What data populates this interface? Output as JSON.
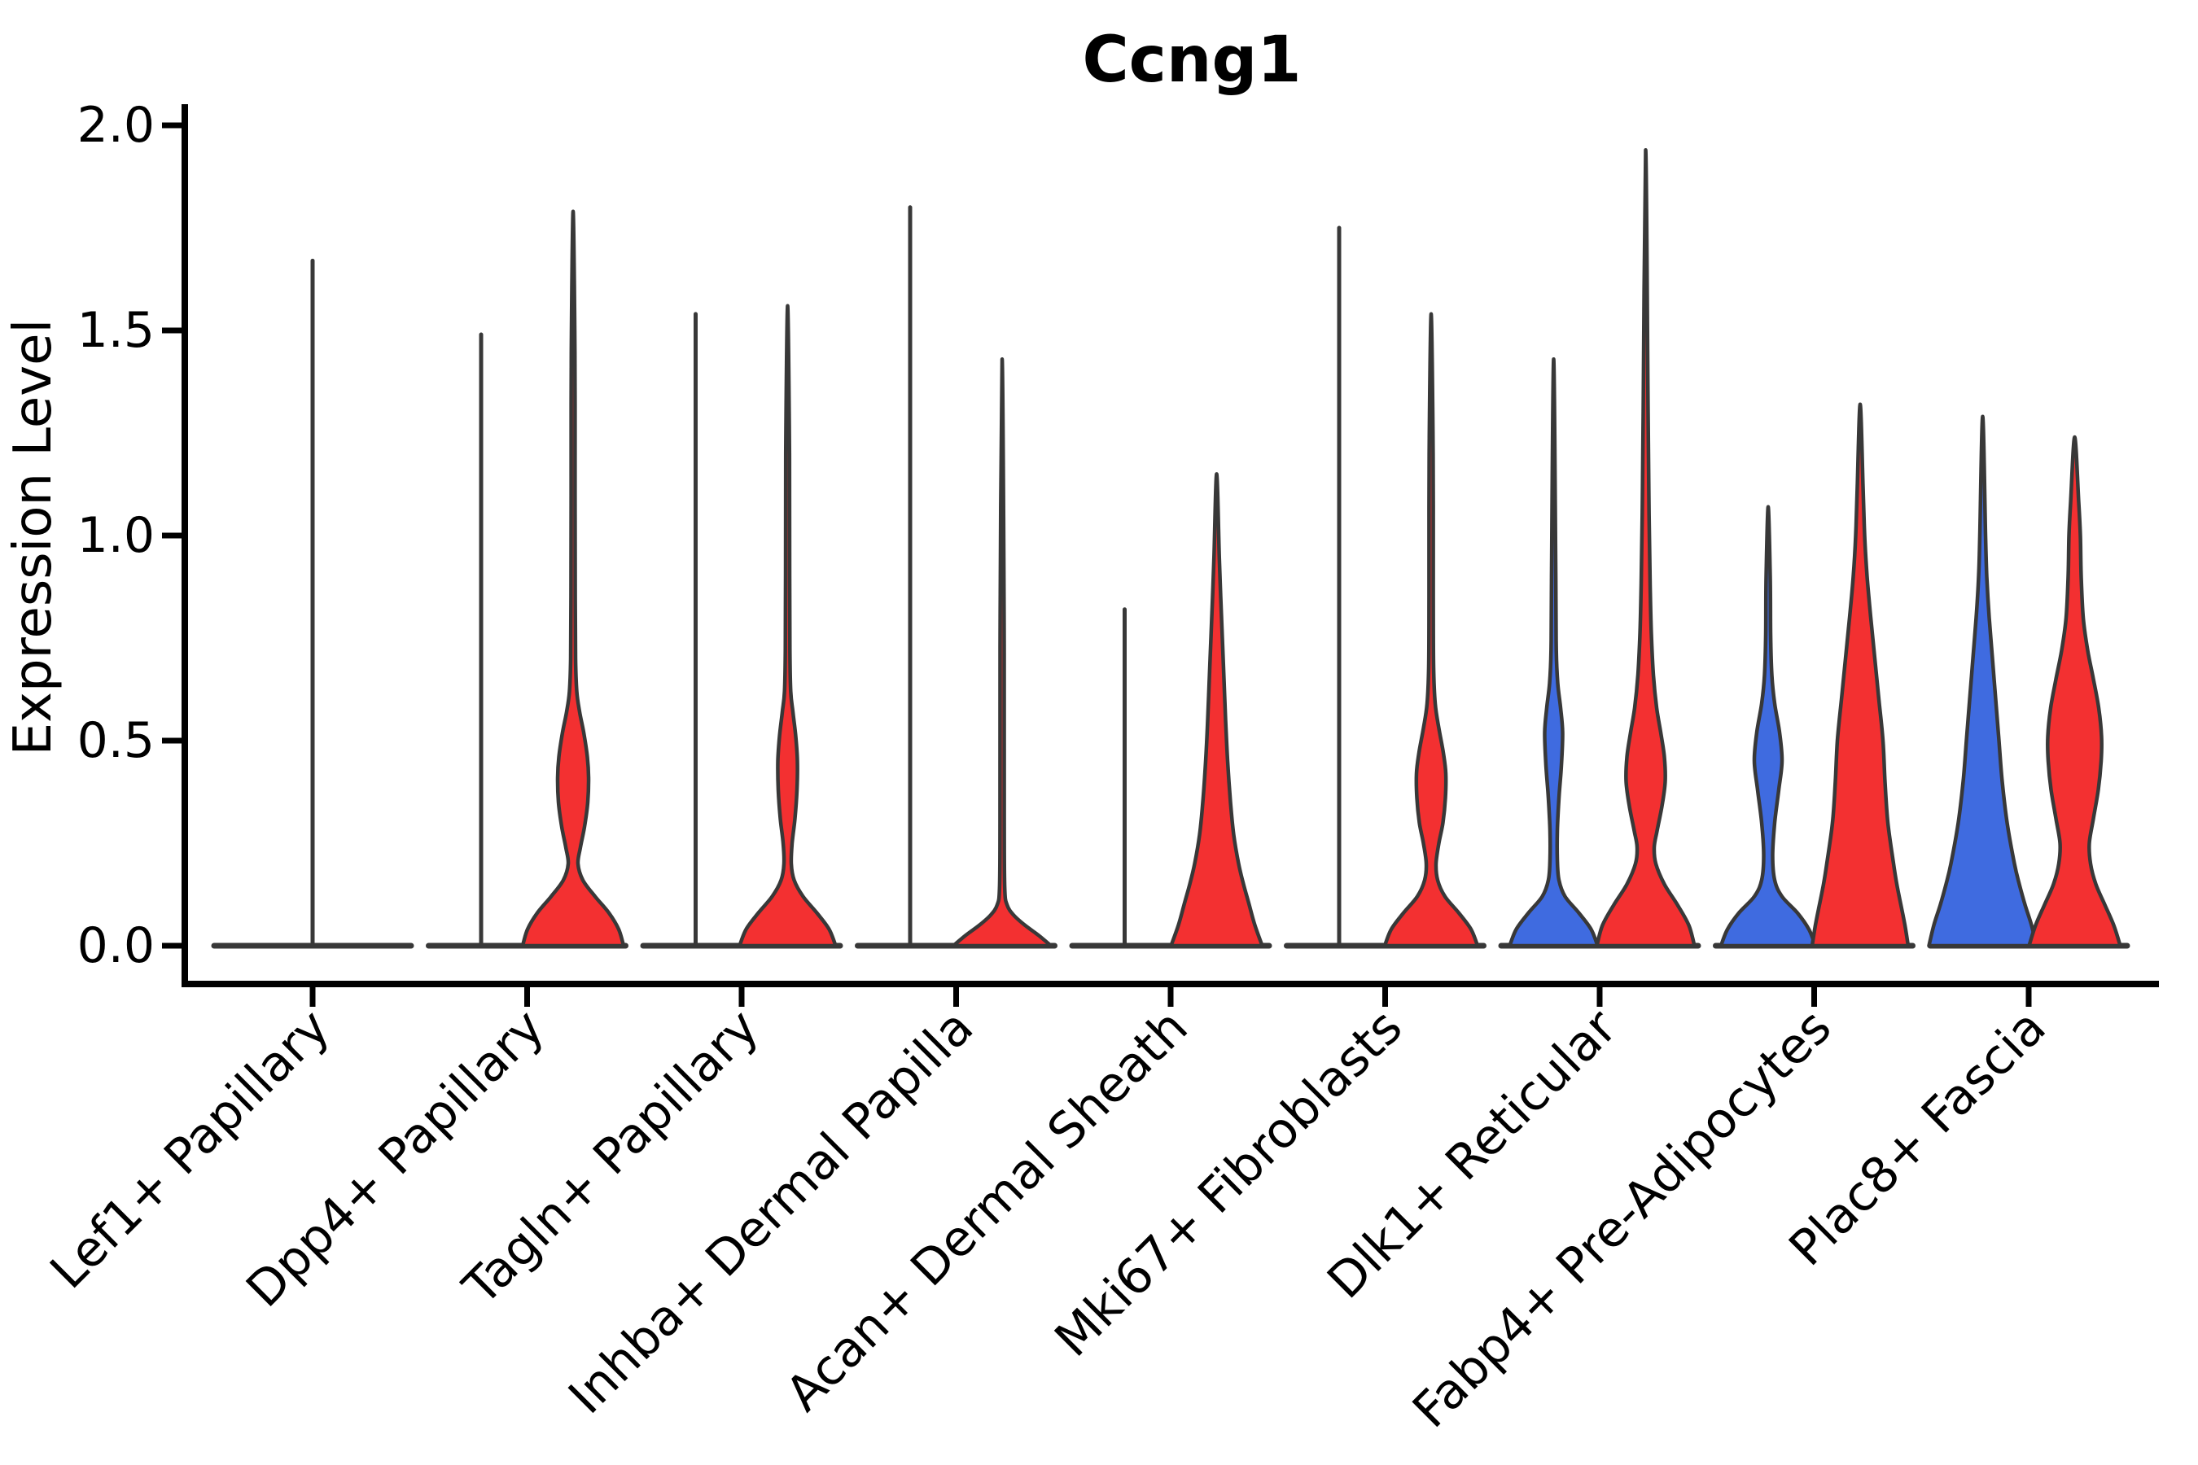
{
  "figure": {
    "background": "#ffffff"
  },
  "chart_data": {
    "type": "violin",
    "title": "Ccng1",
    "xlabel": "",
    "ylabel": "Expression Level",
    "ylim": [
      0,
      2.05
    ],
    "yticks": [
      0.0,
      0.5,
      1.0,
      1.5,
      2.0
    ],
    "ytick_labels": [
      "0.0",
      "0.5",
      "1.0",
      "1.5",
      "2.0"
    ],
    "grid": false,
    "legend": "none",
    "categories": [
      "Lef1+ Papillary",
      "Dpp4+ Papillary",
      "Tagln+ Papillary",
      "Inhba+ Dermal Papilla",
      "Acan+ Dermal Sheath",
      "Mki67+ Fibroblasts",
      "Dlk1+ Reticular",
      "Fabp4+ Pre-Adipocytes",
      "Plac8+ Fascia"
    ],
    "colors": {
      "violin_red": "#F33031",
      "violin_blue": "#3F6BE0",
      "outline": "#383838",
      "axis": "#000000"
    },
    "profile_units": "pairs of [expression_value, half_width_px] at 2700px figure width",
    "violins": [
      {
        "category_index": 0,
        "category": "Lef1+ Papillary",
        "side": "center",
        "color": "none",
        "max_expression": 1.67,
        "profile": []
      },
      {
        "category_index": 1,
        "category": "Dpp4+ Papillary",
        "side": "left",
        "color": "none",
        "max_expression": 1.49,
        "profile": []
      },
      {
        "category_index": 1,
        "category": "Dpp4+ Papillary",
        "side": "right",
        "color": "red",
        "max_expression": 1.79,
        "profile": [
          [
            0,
            62
          ],
          [
            0.04,
            56
          ],
          [
            0.08,
            44
          ],
          [
            0.12,
            27
          ],
          [
            0.16,
            12
          ],
          [
            0.2,
            6
          ],
          [
            0.24,
            9
          ],
          [
            0.29,
            14
          ],
          [
            0.35,
            18
          ],
          [
            0.41,
            19
          ],
          [
            0.46,
            17.5
          ],
          [
            0.52,
            13
          ],
          [
            0.57,
            8
          ],
          [
            0.62,
            4.5
          ],
          [
            0.7,
            3
          ],
          [
            0.85,
            2.6
          ],
          [
            1.1,
            2.4
          ],
          [
            1.45,
            2.2
          ],
          [
            1.79,
            0
          ]
        ]
      },
      {
        "category_index": 2,
        "category": "Tagln+ Papillary",
        "side": "left",
        "color": "none",
        "max_expression": 1.54,
        "profile": []
      },
      {
        "category_index": 2,
        "category": "Tagln+ Papillary",
        "side": "right",
        "color": "red",
        "max_expression": 1.56,
        "profile": [
          [
            0,
            59
          ],
          [
            0.04,
            51
          ],
          [
            0.08,
            36
          ],
          [
            0.12,
            19
          ],
          [
            0.16,
            8
          ],
          [
            0.2,
            4.5
          ],
          [
            0.25,
            5.5
          ],
          [
            0.31,
            9
          ],
          [
            0.38,
            11.5
          ],
          [
            0.45,
            12
          ],
          [
            0.51,
            10
          ],
          [
            0.57,
            6.5
          ],
          [
            0.62,
            3.8
          ],
          [
            0.72,
            2.8
          ],
          [
            0.9,
            2.5
          ],
          [
            1.2,
            2.3
          ],
          [
            1.56,
            0
          ]
        ]
      },
      {
        "category_index": 3,
        "category": "Inhba+ Dermal Papilla",
        "side": "left",
        "color": "none",
        "max_expression": 1.8,
        "profile": []
      },
      {
        "category_index": 3,
        "category": "Inhba+ Dermal Papilla",
        "side": "right",
        "color": "red",
        "max_expression": 1.43,
        "profile": [
          [
            0,
            60
          ],
          [
            0.025,
            45
          ],
          [
            0.05,
            28
          ],
          [
            0.075,
            14
          ],
          [
            0.1,
            6
          ],
          [
            0.14,
            3.2
          ],
          [
            0.3,
            2.6
          ],
          [
            0.8,
            2.4
          ],
          [
            1.43,
            0
          ]
        ]
      },
      {
        "category_index": 4,
        "category": "Acan+ Dermal Sheath",
        "side": "left",
        "color": "none",
        "max_expression": 0.82,
        "profile": []
      },
      {
        "category_index": 4,
        "category": "Acan+ Dermal Sheath",
        "side": "right",
        "color": "red",
        "max_expression": 1.15,
        "profile": [
          [
            0,
            56
          ],
          [
            0.05,
            47
          ],
          [
            0.1,
            40
          ],
          [
            0.15,
            33
          ],
          [
            0.2,
            27
          ],
          [
            0.27,
            21
          ],
          [
            0.35,
            17
          ],
          [
            0.45,
            13.5
          ],
          [
            0.55,
            11
          ],
          [
            0.65,
            9
          ],
          [
            0.75,
            7
          ],
          [
            0.85,
            5
          ],
          [
            0.95,
            3.2
          ],
          [
            1.15,
            0
          ]
        ]
      },
      {
        "category_index": 5,
        "category": "Mki67+ Fibroblasts",
        "side": "left",
        "color": "none",
        "max_expression": 1.75,
        "profile": []
      },
      {
        "category_index": 5,
        "category": "Mki67+ Fibroblasts",
        "side": "right",
        "color": "red",
        "max_expression": 1.54,
        "profile": [
          [
            0,
            57
          ],
          [
            0.04,
            49
          ],
          [
            0.08,
            34
          ],
          [
            0.12,
            17
          ],
          [
            0.16,
            8
          ],
          [
            0.2,
            6
          ],
          [
            0.25,
            9.5
          ],
          [
            0.3,
            14.5
          ],
          [
            0.36,
            17.5
          ],
          [
            0.42,
            18
          ],
          [
            0.47,
            15
          ],
          [
            0.53,
            9.5
          ],
          [
            0.59,
            5
          ],
          [
            0.68,
            3
          ],
          [
            0.85,
            2.6
          ],
          [
            1.2,
            2.4
          ],
          [
            1.54,
            0
          ]
        ]
      },
      {
        "category_index": 6,
        "category": "Dlk1+ Reticular",
        "side": "left",
        "color": "blue",
        "max_expression": 1.43,
        "profile": [
          [
            0,
            54
          ],
          [
            0.04,
            46
          ],
          [
            0.08,
            31
          ],
          [
            0.12,
            14
          ],
          [
            0.16,
            6.5
          ],
          [
            0.21,
            4.5
          ],
          [
            0.28,
            4.5
          ],
          [
            0.36,
            6.5
          ],
          [
            0.44,
            9.5
          ],
          [
            0.52,
            11
          ],
          [
            0.58,
            8.5
          ],
          [
            0.64,
            5
          ],
          [
            0.72,
            3.2
          ],
          [
            0.9,
            2.6
          ],
          [
            1.43,
            0
          ]
        ]
      },
      {
        "category_index": 6,
        "category": "Dlk1+ Reticular",
        "side": "right",
        "color": "red",
        "max_expression": 1.94,
        "profile": [
          [
            0,
            60
          ],
          [
            0.05,
            53
          ],
          [
            0.1,
            39
          ],
          [
            0.15,
            23
          ],
          [
            0.2,
            12.5
          ],
          [
            0.24,
            10.5
          ],
          [
            0.28,
            14
          ],
          [
            0.34,
            20
          ],
          [
            0.4,
            24
          ],
          [
            0.46,
            23
          ],
          [
            0.52,
            18.5
          ],
          [
            0.58,
            13.5
          ],
          [
            0.66,
            9.5
          ],
          [
            0.76,
            7
          ],
          [
            0.88,
            5.5
          ],
          [
            1.05,
            4.2
          ],
          [
            1.3,
            3
          ],
          [
            1.94,
            0
          ]
        ]
      },
      {
        "category_index": 7,
        "category": "Fabp4+ Pre-Adipocytes",
        "side": "left",
        "color": "blue",
        "max_expression": 1.07,
        "profile": [
          [
            0,
            58
          ],
          [
            0.04,
            50
          ],
          [
            0.08,
            36
          ],
          [
            0.12,
            17
          ],
          [
            0.16,
            8
          ],
          [
            0.22,
            5.5
          ],
          [
            0.3,
            8
          ],
          [
            0.38,
            13
          ],
          [
            0.45,
            17
          ],
          [
            0.52,
            14
          ],
          [
            0.59,
            8
          ],
          [
            0.66,
            4.5
          ],
          [
            0.76,
            3
          ],
          [
            0.9,
            2.5
          ],
          [
            1.07,
            0
          ]
        ]
      },
      {
        "category_index": 7,
        "category": "Fabp4+ Pre-Adipocytes",
        "side": "right",
        "color": "red",
        "max_expression": 1.32,
        "profile": [
          [
            0,
            59
          ],
          [
            0.05,
            55
          ],
          [
            0.1,
            50
          ],
          [
            0.15,
            45
          ],
          [
            0.2,
            41
          ],
          [
            0.3,
            34
          ],
          [
            0.4,
            30.5
          ],
          [
            0.5,
            28
          ],
          [
            0.6,
            23
          ],
          [
            0.7,
            18
          ],
          [
            0.8,
            13
          ],
          [
            0.9,
            8.5
          ],
          [
            1.0,
            5.5
          ],
          [
            1.12,
            3.5
          ],
          [
            1.32,
            0
          ]
        ]
      },
      {
        "category_index": 8,
        "category": "Plac8+ Fascia",
        "side": "left",
        "color": "blue",
        "max_expression": 1.29,
        "profile": [
          [
            0,
            66
          ],
          [
            0.05,
            60
          ],
          [
            0.1,
            52
          ],
          [
            0.15,
            45
          ],
          [
            0.2,
            39
          ],
          [
            0.3,
            30
          ],
          [
            0.4,
            24
          ],
          [
            0.5,
            20
          ],
          [
            0.6,
            16
          ],
          [
            0.7,
            12
          ],
          [
            0.8,
            8
          ],
          [
            0.9,
            5
          ],
          [
            1.0,
            3.5
          ],
          [
            1.29,
            0
          ]
        ]
      },
      {
        "category_index": 8,
        "category": "Plac8+ Fascia",
        "side": "right",
        "color": "red",
        "max_expression": 1.24,
        "profile": [
          [
            0,
            56
          ],
          [
            0.05,
            48
          ],
          [
            0.1,
            37
          ],
          [
            0.15,
            26
          ],
          [
            0.2,
            19.5
          ],
          [
            0.25,
            18
          ],
          [
            0.31,
            23
          ],
          [
            0.38,
            29
          ],
          [
            0.45,
            32.5
          ],
          [
            0.51,
            33
          ],
          [
            0.58,
            29.5
          ],
          [
            0.65,
            23
          ],
          [
            0.72,
            16
          ],
          [
            0.8,
            10.5
          ],
          [
            0.9,
            8
          ],
          [
            1.0,
            7
          ],
          [
            1.08,
            5
          ],
          [
            1.24,
            0
          ]
        ]
      }
    ]
  }
}
